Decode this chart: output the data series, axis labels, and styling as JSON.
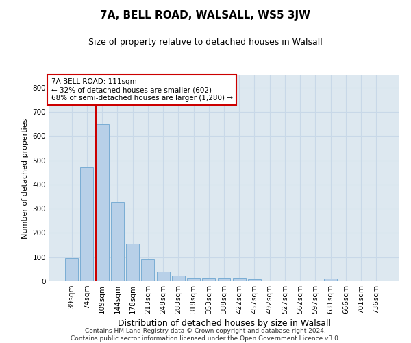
{
  "title_line1": "7A, BELL ROAD, WALSALL, WS5 3JW",
  "title_line2": "Size of property relative to detached houses in Walsall",
  "xlabel": "Distribution of detached houses by size in Walsall",
  "ylabel": "Number of detached properties",
  "categories": [
    "39sqm",
    "74sqm",
    "109sqm",
    "144sqm",
    "178sqm",
    "213sqm",
    "248sqm",
    "283sqm",
    "318sqm",
    "353sqm",
    "388sqm",
    "422sqm",
    "457sqm",
    "492sqm",
    "527sqm",
    "562sqm",
    "597sqm",
    "631sqm",
    "666sqm",
    "701sqm",
    "736sqm"
  ],
  "values": [
    95,
    470,
    648,
    325,
    157,
    90,
    40,
    22,
    15,
    15,
    13,
    13,
    8,
    0,
    0,
    0,
    0,
    10,
    0,
    0,
    0
  ],
  "bar_color": "#b8d0e8",
  "bar_edge_color": "#7aadd4",
  "annotation_line1": "7A BELL ROAD: 111sqm",
  "annotation_line2": "← 32% of detached houses are smaller (602)",
  "annotation_line3": "68% of semi-detached houses are larger (1,280) →",
  "annotation_box_facecolor": "#ffffff",
  "annotation_box_edgecolor": "#cc0000",
  "vline_color": "#cc0000",
  "vline_x_index": 2,
  "ylim": [
    0,
    850
  ],
  "yticks": [
    0,
    100,
    200,
    300,
    400,
    500,
    600,
    700,
    800
  ],
  "grid_color": "#c8d8e8",
  "background_color": "#dde8f0",
  "figure_facecolor": "#ffffff",
  "footer_line1": "Contains HM Land Registry data © Crown copyright and database right 2024.",
  "footer_line2": "Contains public sector information licensed under the Open Government Licence v3.0.",
  "title1_fontsize": 11,
  "title2_fontsize": 9,
  "ylabel_fontsize": 8,
  "xlabel_fontsize": 9,
  "tick_fontsize": 7.5,
  "annotation_fontsize": 7.5,
  "footer_fontsize": 6.5
}
